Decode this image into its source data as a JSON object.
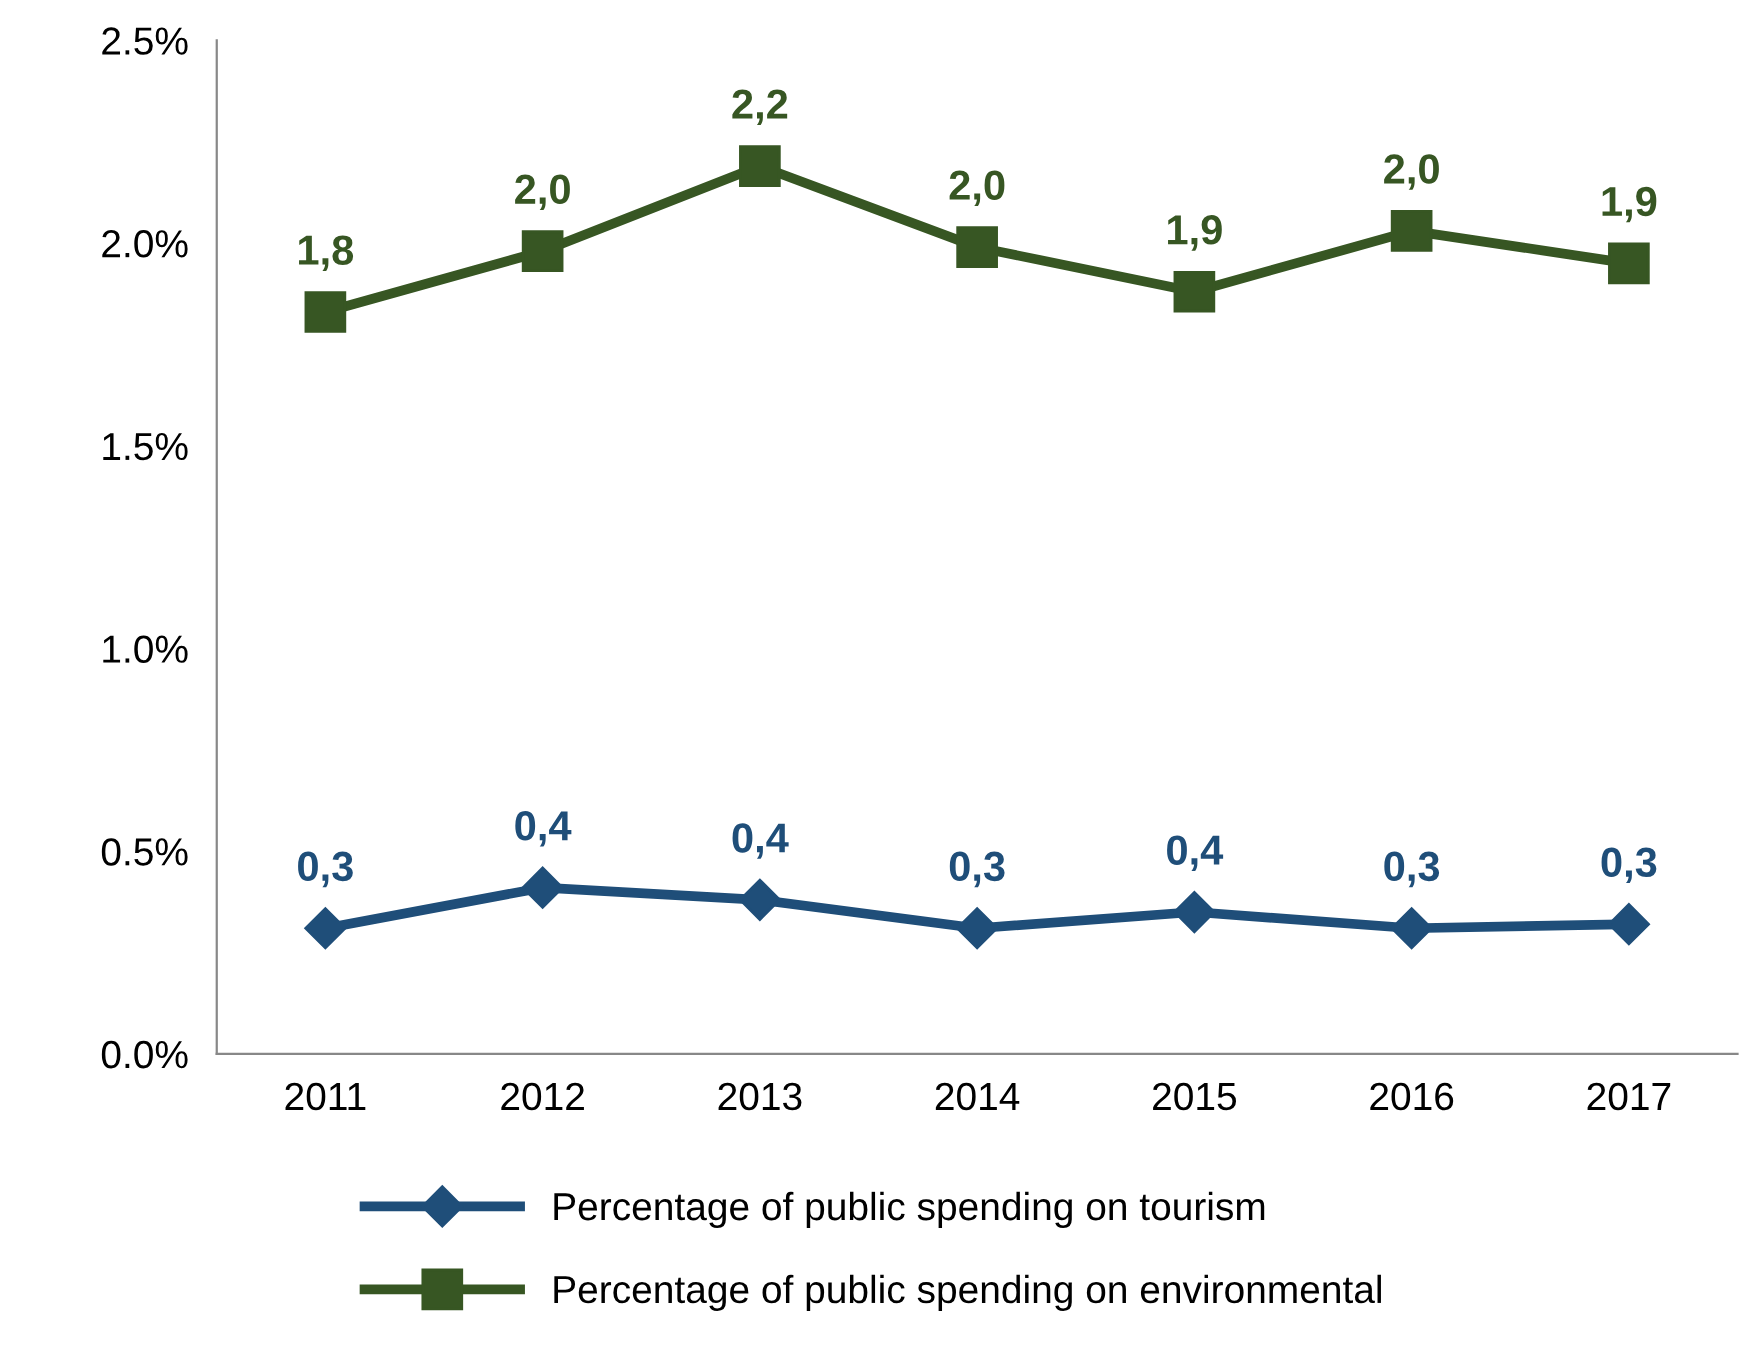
{
  "chart_data": {
    "type": "line",
    "categories": [
      "2011",
      "2012",
      "2013",
      "2014",
      "2015",
      "2016",
      "2017"
    ],
    "series": [
      {
        "name": "Percentage of public spending on tourism",
        "color": "#1f4e79",
        "marker": "diamond",
        "values": [
          0.31,
          0.41,
          0.38,
          0.31,
          0.35,
          0.31,
          0.32
        ],
        "value_labels": [
          "0,3",
          "0,4",
          "0,4",
          "0,3",
          "0,4",
          "0,3",
          "0,3"
        ]
      },
      {
        "name": "Percentage of public spending on environmental",
        "color": "#375623",
        "marker": "square",
        "values": [
          1.83,
          1.98,
          2.19,
          1.99,
          1.88,
          2.03,
          1.95
        ],
        "value_labels": [
          "1,8",
          "2,0",
          "2,2",
          "2,0",
          "1,9",
          "2,0",
          "1,9"
        ]
      }
    ],
    "ylim": [
      0,
      2.5
    ],
    "yticks": [
      {
        "value": 0,
        "label": "0.0%"
      },
      {
        "value": 0.5,
        "label": "0.5%"
      },
      {
        "value": 1.0,
        "label": "1.0%"
      },
      {
        "value": 1.5,
        "label": "1.5%"
      },
      {
        "value": 2.0,
        "label": "2.0%"
      },
      {
        "value": 2.5,
        "label": "2.5%"
      }
    ],
    "grid": false,
    "legend": "bottom",
    "line_style": "solid"
  }
}
